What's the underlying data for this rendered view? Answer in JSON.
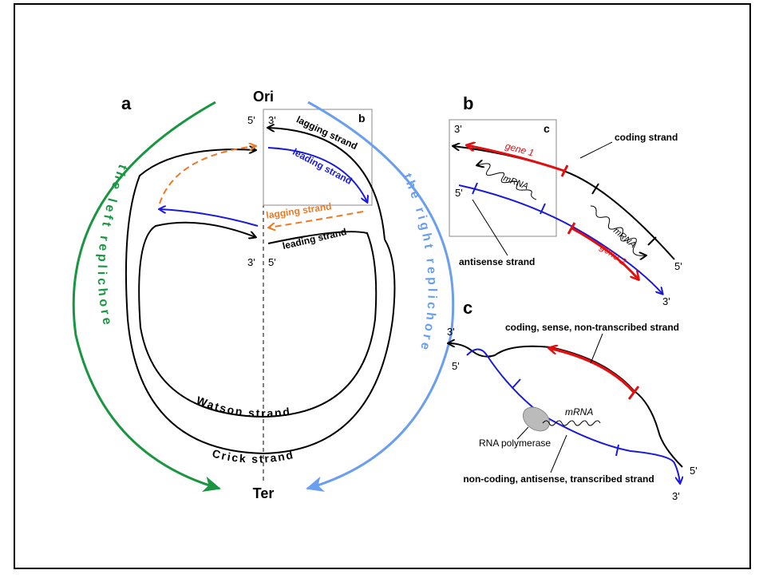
{
  "panel_a": {
    "label": "a",
    "ori": "Ori",
    "ter": "Ter",
    "top_left_end": "5'",
    "top_right_end": "3'",
    "inset_label": "b",
    "upper_lagging": "lagging strand",
    "upper_leading": "leading strand",
    "lower_lagging": "lagging strand",
    "lower_leading": "leading strand",
    "bottom_left_end": "3'",
    "bottom_right_end": "5'",
    "left_replichore": "the left replichore",
    "right_replichore": "the right replichore",
    "watson": "Watson strand",
    "crick": "Crick strand"
  },
  "panel_b": {
    "label": "b",
    "inset_label": "c",
    "top_end": "3'",
    "coding": "coding strand",
    "gene1": "gene 1",
    "mrna_left": "mRNA",
    "mrna_right": "mRNA",
    "left_end": "5'",
    "antisense": "antisense strand",
    "gene2": "gene 2",
    "right_top_end": "5'",
    "right_bottom_end": "3'"
  },
  "panel_c": {
    "label": "c",
    "top_end": "3'",
    "left_end": "5'",
    "coding": "coding, sense, non-transcribed strand",
    "mrna": "mRNA",
    "polymerase": "RNA polymerase",
    "noncoding": "non-coding, antisense, transcribed strand",
    "right_end": "5'",
    "bottom_end": "3'"
  }
}
